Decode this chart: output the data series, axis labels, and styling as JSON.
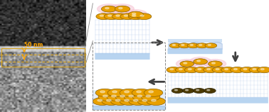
{
  "fig_width": 3.78,
  "fig_height": 1.58,
  "dpi": 100,
  "bg_color": "#ffffff",
  "em_label": "50 nm",
  "em_label_color": "#FFA500",
  "em_band_color": "#DAA520",
  "brush_color": "#aac4e8",
  "substrate_color": "#b8d4f0",
  "np_color": "#E8A000",
  "np_edge_color": "#8B6000",
  "np_halo_color": "#F5C0D0",
  "arrow_color": "#404040",
  "connector_color": "#888888"
}
